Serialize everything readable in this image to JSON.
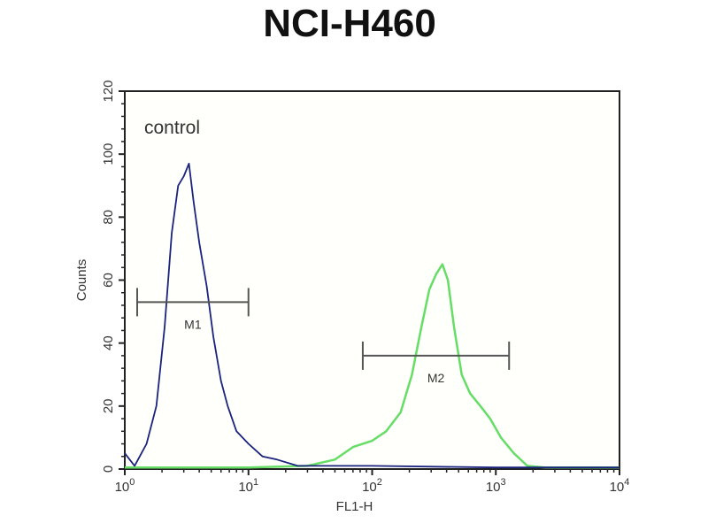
{
  "chart_data": {
    "type": "line",
    "title": "NCI-H460",
    "xlabel": "FL1-H",
    "ylabel": "Counts",
    "xscale": "log",
    "xlim": [
      1,
      10000
    ],
    "ylim": [
      0,
      120
    ],
    "x_ticks": [
      {
        "base": "10",
        "exp": "0"
      },
      {
        "base": "10",
        "exp": "1"
      },
      {
        "base": "10",
        "exp": "2"
      },
      {
        "base": "10",
        "exp": "3"
      },
      {
        "base": "10",
        "exp": "4"
      }
    ],
    "y_ticks": [
      "0",
      "20",
      "40",
      "60",
      "80",
      "100",
      "120"
    ],
    "annotation": "control",
    "grid": false,
    "series": [
      {
        "color": "#1a237e",
        "x": [
          1.0,
          1.2,
          1.5,
          1.8,
          2.1,
          2.4,
          2.7,
          3.0,
          3.3,
          3.6,
          4.0,
          4.6,
          5.2,
          6.0,
          6.8,
          8,
          10,
          13,
          17,
          25,
          40,
          100,
          1000,
          10000
        ],
        "y": [
          5,
          1,
          8,
          20,
          45,
          75,
          90,
          93,
          97,
          85,
          72,
          58,
          42,
          28,
          20,
          12,
          8,
          4,
          3,
          1,
          1,
          1,
          0.5,
          0.5
        ]
      },
      {
        "color": "#66dd66",
        "x": [
          1,
          10,
          30,
          50,
          70,
          100,
          130,
          170,
          210,
          250,
          290,
          330,
          370,
          410,
          460,
          530,
          620,
          750,
          900,
          1100,
          1400,
          1800,
          2500,
          10000
        ],
        "y": [
          0.5,
          0.5,
          1,
          3,
          7,
          9,
          12,
          18,
          30,
          45,
          57,
          62,
          65,
          60,
          45,
          30,
          24,
          20,
          16,
          10,
          5,
          1,
          0.5,
          0.5
        ]
      }
    ],
    "markers": [
      {
        "label": "M1",
        "x": [
          1.26,
          10
        ],
        "y": 53
      },
      {
        "label": "M2",
        "x": [
          84,
          1280
        ],
        "y": 36
      }
    ],
    "colors": {
      "axis": "#222222",
      "marker": "#555555"
    }
  }
}
